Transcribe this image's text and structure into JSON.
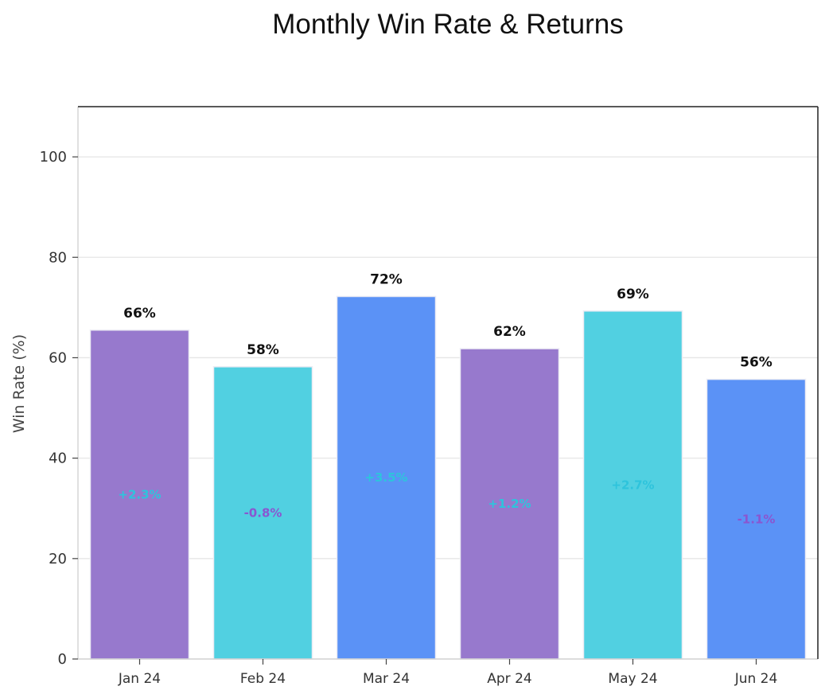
{
  "chart_data": {
    "type": "bar",
    "title": "Monthly Win Rate & Returns",
    "xlabel": "",
    "ylabel": "Win Rate (%)",
    "ylim": [
      0,
      110
    ],
    "yticks": [
      0,
      20,
      40,
      60,
      80,
      100
    ],
    "grid": true,
    "categories": [
      "Jan 24",
      "Feb 24",
      "Mar 24",
      "Apr 24",
      "May 24",
      "Jun 24"
    ],
    "values": [
      65.5,
      58.2,
      72.2,
      61.8,
      69.3,
      55.7
    ],
    "value_labels": [
      "66%",
      "58%",
      "72%",
      "62%",
      "69%",
      "56%"
    ],
    "returns": [
      2.3,
      -0.8,
      3.5,
      1.2,
      2.7,
      -1.1
    ],
    "return_labels": [
      "+2.3%",
      "-0.8%",
      "+3.5%",
      "+1.2%",
      "+2.7%",
      "-1.1%"
    ],
    "bar_colors": [
      "#9779cd",
      "#51d0e1",
      "#5b92f6",
      "#9779cd",
      "#51d0e1",
      "#5b92f6"
    ],
    "return_colors": {
      "positive": "#2ec4dc",
      "negative": "#8a56d0"
    }
  }
}
